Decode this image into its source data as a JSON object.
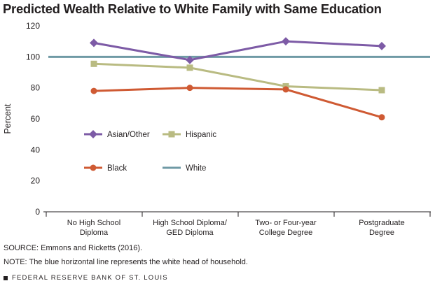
{
  "title": "Predicted Wealth Relative to White Family with Same Education",
  "source": "SOURCE: Emmons and Ricketts (2016).",
  "note": "NOTE: The blue horizontal line represents the white head of household.",
  "footer": "FEDERAL RESERVE BANK OF ST. LOUIS",
  "chart_data": {
    "type": "line",
    "title": "Predicted Wealth Relative to White Family with Same Education",
    "ylabel": "Percent",
    "xlabel": "",
    "ylim": [
      0,
      120
    ],
    "yticks": [
      0,
      20,
      40,
      60,
      80,
      100,
      120
    ],
    "grid": false,
    "legend_position": "lower-left inside plot",
    "categories": [
      [
        "No High School",
        "Diploma"
      ],
      [
        "High School Diploma/",
        "GED Diploma"
      ],
      [
        "Two- or Four-year",
        "College Degree"
      ],
      [
        "Postgraduate",
        "Degree"
      ]
    ],
    "series": [
      {
        "name": "Asian/Other",
        "marker": "diamond",
        "color": "#7d5ba6",
        "values": [
          109,
          98,
          110,
          107
        ]
      },
      {
        "name": "Hispanic",
        "marker": "square",
        "color": "#b9bb82",
        "values": [
          95.5,
          93,
          81,
          78.5
        ]
      },
      {
        "name": "Black",
        "marker": "circle",
        "color": "#cf5a33",
        "values": [
          78,
          80,
          79,
          61
        ]
      },
      {
        "name": "White",
        "marker": "none",
        "color": "#6f9aa5",
        "values": [
          100,
          100,
          100,
          100
        ]
      }
    ]
  }
}
